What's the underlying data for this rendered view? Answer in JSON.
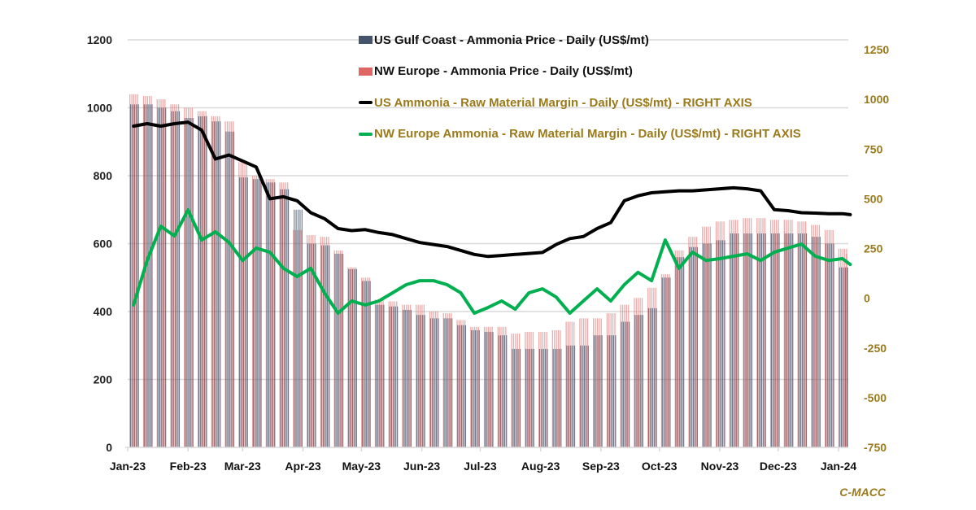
{
  "chart_data": {
    "type": "bar+line",
    "title": "",
    "xlabel": "",
    "ylabel_left": "",
    "ylabel_right": "",
    "left_axis": {
      "ylim": [
        0,
        1200
      ],
      "ticks": [
        0,
        200,
        400,
        600,
        800,
        1000,
        1200
      ]
    },
    "right_axis": {
      "ylim": [
        -750,
        1250
      ],
      "ticks": [
        -750,
        -500,
        -250,
        0,
        250,
        500,
        750,
        1000,
        1250
      ]
    },
    "x_ticks": [
      "Jan-23",
      "Feb-23",
      "Mar-23",
      "Apr-23",
      "May-23",
      "Jun-23",
      "Jul-23",
      "Aug-23",
      "Sep-23",
      "Oct-23",
      "Nov-23",
      "Dec-23",
      "Jan-24"
    ],
    "grid": "horizontal",
    "legend_position": "top-center",
    "source": "C-MACC",
    "x_weeks": [
      "2023-01-02",
      "2023-01-09",
      "2023-01-16",
      "2023-01-23",
      "2023-01-30",
      "2023-02-06",
      "2023-02-13",
      "2023-02-20",
      "2023-02-27",
      "2023-03-06",
      "2023-03-13",
      "2023-03-20",
      "2023-03-27",
      "2023-04-03",
      "2023-04-10",
      "2023-04-17",
      "2023-04-24",
      "2023-05-01",
      "2023-05-08",
      "2023-05-15",
      "2023-05-22",
      "2023-05-29",
      "2023-06-05",
      "2023-06-12",
      "2023-06-19",
      "2023-06-26",
      "2023-07-03",
      "2023-07-10",
      "2023-07-17",
      "2023-07-24",
      "2023-07-31",
      "2023-08-07",
      "2023-08-14",
      "2023-08-21",
      "2023-08-28",
      "2023-09-04",
      "2023-09-11",
      "2023-09-18",
      "2023-09-25",
      "2023-10-02",
      "2023-10-09",
      "2023-10-16",
      "2023-10-23",
      "2023-10-30",
      "2023-11-06",
      "2023-11-13",
      "2023-11-20",
      "2023-11-27",
      "2023-12-04",
      "2023-12-11",
      "2023-12-18",
      "2023-12-25",
      "2024-01-01",
      "2024-01-05"
    ],
    "series": [
      {
        "name": "US Gulf Coast - Ammonia Price - Daily (US$/mt)",
        "type": "bar",
        "axis": "left",
        "color": "#44546a",
        "values": [
          1010,
          1010,
          1000,
          990,
          970,
          975,
          960,
          930,
          795,
          790,
          780,
          760,
          700,
          600,
          595,
          570,
          525,
          490,
          420,
          415,
          405,
          390,
          380,
          380,
          360,
          345,
          340,
          330,
          290,
          290,
          290,
          290,
          300,
          300,
          330,
          330,
          370,
          390,
          410,
          500,
          560,
          590,
          600,
          610,
          630,
          630,
          630,
          630,
          630,
          630,
          620,
          600,
          530,
          530
        ]
      },
      {
        "name": "NW Europe - Ammonia Price - Daily (US$/mt)",
        "type": "bar",
        "axis": "left",
        "color": "#e06666",
        "values": [
          1040,
          1035,
          1025,
          1010,
          1000,
          990,
          975,
          960,
          840,
          800,
          790,
          780,
          640,
          625,
          620,
          580,
          530,
          500,
          435,
          430,
          420,
          420,
          400,
          395,
          375,
          355,
          355,
          355,
          335,
          340,
          340,
          345,
          370,
          380,
          380,
          395,
          420,
          440,
          470,
          510,
          580,
          620,
          650,
          665,
          670,
          675,
          675,
          670,
          670,
          665,
          655,
          640,
          585,
          570
        ]
      },
      {
        "name": "US Ammonia - Raw Material Margin - Daily (US$/mt) - RIGHT AXIS",
        "type": "line",
        "axis": "right",
        "color": "#000000",
        "values": [
          865,
          878,
          865,
          878,
          885,
          845,
          700,
          720,
          690,
          660,
          500,
          510,
          490,
          430,
          400,
          350,
          340,
          345,
          330,
          320,
          300,
          280,
          270,
          260,
          240,
          220,
          210,
          215,
          220,
          225,
          230,
          270,
          300,
          310,
          350,
          380,
          490,
          515,
          530,
          535,
          540,
          540,
          545,
          550,
          555,
          550,
          540,
          445,
          440,
          430,
          428,
          425,
          425,
          420
        ]
      },
      {
        "name": "NW Europe Ammonia - Raw Material Margin - Daily (US$/mt) - RIGHT AXIS",
        "type": "line",
        "axis": "right",
        "color": "#00b050",
        "values": [
          -34,
          190,
          362,
          313,
          444,
          293,
          334,
          281,
          190,
          252,
          231,
          150,
          109,
          150,
          27,
          -75,
          -14,
          -34,
          -14,
          27,
          68,
          88,
          88,
          68,
          27,
          -75,
          -47,
          -14,
          -55,
          27,
          47,
          6,
          -75,
          -14,
          47,
          -14,
          68,
          130,
          88,
          293,
          150,
          231,
          190,
          199,
          211,
          223,
          190,
          231,
          252,
          272,
          211,
          190,
          199,
          170
        ]
      }
    ]
  }
}
